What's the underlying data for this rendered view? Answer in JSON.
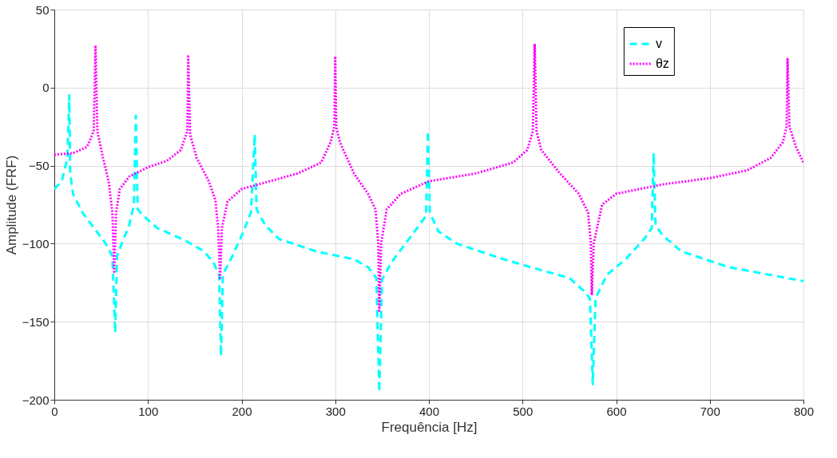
{
  "chart_data": {
    "type": "line",
    "xlabel": "Frequência [Hz]",
    "ylabel": "Amplitude (FRF)",
    "xlim": [
      0,
      800
    ],
    "ylim": [
      -200,
      50
    ],
    "xticks": [
      0,
      100,
      200,
      300,
      400,
      500,
      600,
      700,
      800
    ],
    "yticks": [
      -200,
      -150,
      -100,
      -50,
      0,
      50
    ],
    "grid": true,
    "legend": "top right",
    "marker": "none",
    "series": [
      {
        "name": "v",
        "color": "#00ffff",
        "line_style": "dashed",
        "x": [
          0,
          8,
          14,
          16,
          17,
          20,
          30,
          45,
          55,
          62,
          65,
          67,
          72,
          80,
          85,
          87,
          89,
          95,
          110,
          140,
          160,
          170,
          176,
          178,
          180,
          190,
          200,
          210,
          214,
          216,
          225,
          240,
          280,
          320,
          335,
          344,
          347,
          350,
          360,
          375,
          390,
          397,
          399,
          401,
          410,
          430,
          480,
          520,
          550,
          565,
          572,
          575,
          578,
          590,
          610,
          630,
          638,
          640,
          642,
          650,
          670,
          720,
          800
        ],
        "values": [
          -65,
          -60,
          -45,
          -5,
          -55,
          -68,
          -80,
          -92,
          -100,
          -108,
          -157,
          -108,
          -100,
          -88,
          -75,
          -18,
          -78,
          -82,
          -90,
          -98,
          -105,
          -112,
          -120,
          -172,
          -120,
          -108,
          -95,
          -80,
          -30,
          -78,
          -88,
          -97,
          -105,
          -110,
          -115,
          -122,
          -195,
          -123,
          -112,
          -100,
          -88,
          -82,
          -28,
          -80,
          -92,
          -100,
          -110,
          -117,
          -122,
          -130,
          -135,
          -190,
          -135,
          -120,
          -110,
          -97,
          -90,
          -42,
          -88,
          -95,
          -105,
          -115,
          -124
        ]
      },
      {
        "name": "θz",
        "color": "#ff00ff",
        "line_style": "dotted",
        "x": [
          0,
          20,
          35,
          42,
          44,
          46,
          52,
          58,
          62,
          64,
          66,
          70,
          80,
          100,
          120,
          135,
          142,
          143,
          145,
          152,
          165,
          172,
          175,
          177,
          179,
          185,
          200,
          230,
          260,
          285,
          295,
          299,
          300,
          301,
          305,
          320,
          335,
          343,
          346,
          347,
          349,
          355,
          370,
          400,
          450,
          490,
          505,
          511,
          513,
          515,
          520,
          540,
          560,
          570,
          573,
          574,
          576,
          585,
          600,
          650,
          700,
          740,
          765,
          778,
          782,
          783,
          785,
          792,
          800
        ],
        "values": [
          -43,
          -42,
          -38,
          -28,
          27,
          -28,
          -45,
          -60,
          -80,
          -118,
          -80,
          -65,
          -57,
          -51,
          -47,
          -40,
          -28,
          20,
          -30,
          -45,
          -60,
          -72,
          -90,
          -123,
          -90,
          -73,
          -65,
          -60,
          -55,
          -48,
          -35,
          -25,
          20,
          -25,
          -35,
          -55,
          -68,
          -78,
          -100,
          -143,
          -100,
          -78,
          -68,
          -60,
          -55,
          -48,
          -40,
          -28,
          28,
          -28,
          -40,
          -55,
          -68,
          -80,
          -100,
          -133,
          -100,
          -75,
          -68,
          -62,
          -58,
          -53,
          -45,
          -35,
          -25,
          19,
          -25,
          -38,
          -48
        ]
      }
    ]
  }
}
